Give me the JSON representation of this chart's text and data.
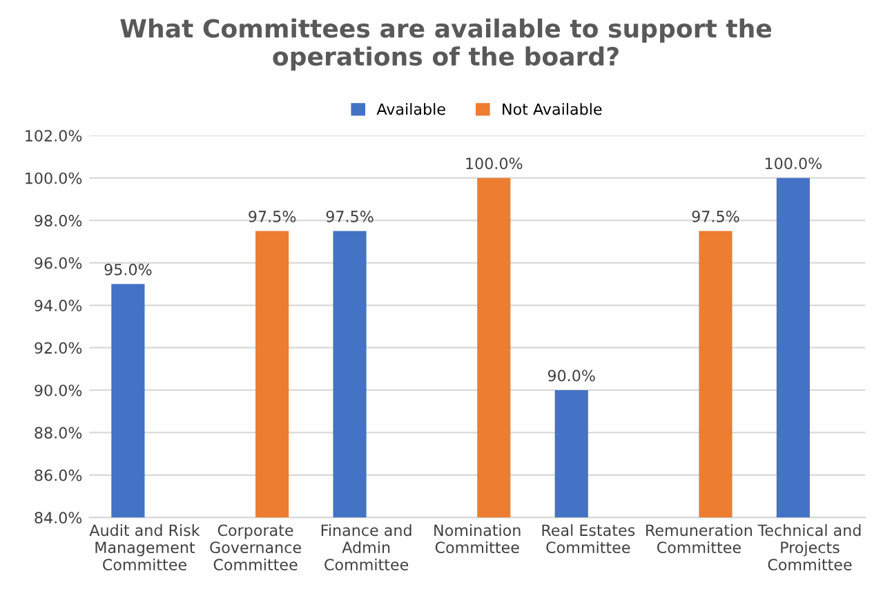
{
  "chart_data": {
    "type": "bar",
    "title": "What Committees are available to support the\noperations of the board?",
    "categories": [
      "Audit and Risk\nManagement\nCommittee",
      "Corporate\nGovernance\nCommittee",
      "Finance and\nAdmin\nCommittee",
      "Nomination\nCommittee",
      "Real Estates\nCommittee",
      "Remuneration\nCommittee",
      "Technical and\nProjects\nCommittee"
    ],
    "series": [
      {
        "name": "Available",
        "color": "#4472c4",
        "values": [
          95.0,
          null,
          97.5,
          null,
          90.0,
          null,
          100.0
        ],
        "value_labels": [
          "95.0%",
          null,
          "97.5%",
          null,
          "90.0%",
          null,
          "100.0%"
        ]
      },
      {
        "name": "Not Available",
        "color": "#ed7d31",
        "values": [
          null,
          97.5,
          null,
          100.0,
          null,
          97.5,
          null
        ],
        "value_labels": [
          null,
          "97.5%",
          null,
          "100.0%",
          null,
          "97.5%",
          null
        ]
      }
    ],
    "ylim": [
      84,
      102
    ],
    "yticks": [
      {
        "value": 84,
        "label": "84.0%"
      },
      {
        "value": 86,
        "label": "86.0%"
      },
      {
        "value": 88,
        "label": "88.0%"
      },
      {
        "value": 90,
        "label": "90.0%"
      },
      {
        "value": 92,
        "label": "92.0%"
      },
      {
        "value": 94,
        "label": "94.0%"
      },
      {
        "value": 96,
        "label": "96.0%"
      },
      {
        "value": 98,
        "label": "98.0%"
      },
      {
        "value": 100,
        "label": "100.0%"
      },
      {
        "value": 102,
        "label": "102.0%"
      }
    ],
    "grid": "y",
    "legend": "top"
  }
}
